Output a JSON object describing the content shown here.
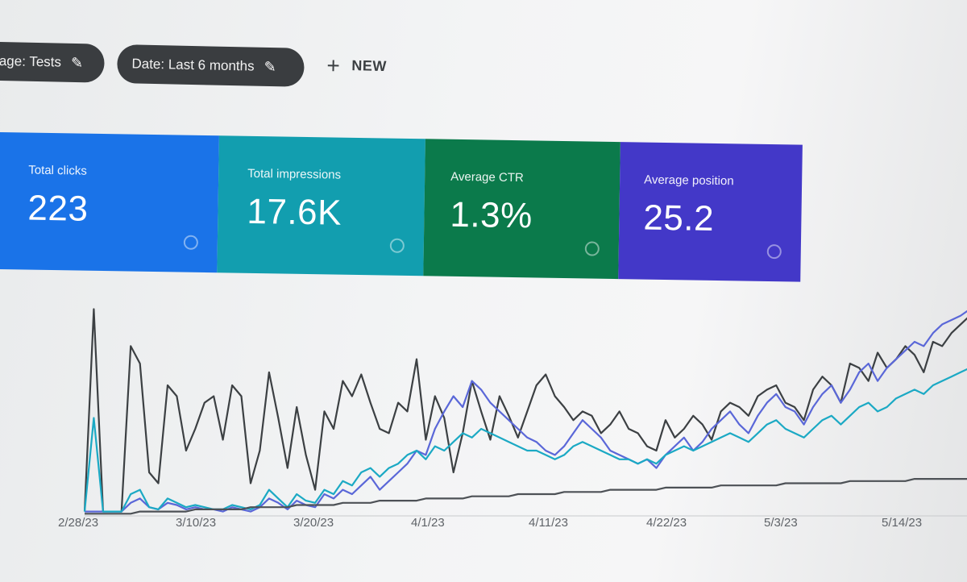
{
  "toolbar": {
    "page_filter_label": "Page: Tests",
    "date_filter_label": "Date: Last 6 months",
    "pencil_glyph": "✎",
    "new_plus": "+",
    "new_label": "NEW"
  },
  "cards": [
    {
      "label": "Total clicks",
      "value": "223",
      "color": "#1a73e8"
    },
    {
      "label": "Total impressions",
      "value": "17.6K",
      "color": "#129eaf"
    },
    {
      "label": "Average CTR",
      "value": "1.3%",
      "color": "#0b7a4b"
    },
    {
      "label": "Average position",
      "value": "25.2",
      "color": "#4338c8"
    }
  ],
  "chart_data": {
    "type": "line",
    "x_tick_labels": [
      "2/28/23",
      "3/10/23",
      "3/20/23",
      "4/1/23",
      "4/11/23",
      "4/22/23",
      "5/3/23",
      "5/14/23"
    ],
    "series": [
      {
        "color": "#3c4043",
        "values": [
          2,
          95,
          2,
          2,
          2,
          78,
          70,
          20,
          15,
          60,
          55,
          30,
          40,
          52,
          55,
          35,
          60,
          55,
          15,
          30,
          66,
          45,
          22,
          50,
          28,
          12,
          48,
          40,
          62,
          55,
          65,
          52,
          40,
          38,
          52,
          48,
          72,
          35,
          55,
          45,
          20,
          38,
          62,
          48,
          35,
          55,
          46,
          36,
          48,
          60,
          65,
          55,
          50,
          44,
          48,
          46,
          38,
          42,
          48,
          40,
          38,
          32,
          30,
          44,
          36,
          40,
          46,
          42,
          35,
          48,
          52,
          50,
          46,
          55,
          58,
          60,
          52,
          50,
          44,
          58,
          64,
          60,
          52,
          70,
          68,
          62,
          75,
          68,
          72,
          78,
          74,
          66,
          80,
          78,
          84,
          88,
          92,
          96
        ]
      },
      {
        "color": "#5a67d8",
        "values": [
          2,
          2,
          2,
          2,
          2,
          6,
          8,
          4,
          3,
          6,
          5,
          3,
          4,
          3,
          3,
          2,
          4,
          3,
          2,
          4,
          8,
          6,
          3,
          7,
          5,
          4,
          10,
          8,
          12,
          10,
          14,
          18,
          12,
          16,
          20,
          24,
          30,
          28,
          40,
          48,
          55,
          50,
          62,
          58,
          52,
          48,
          44,
          40,
          36,
          34,
          30,
          28,
          32,
          38,
          44,
          40,
          36,
          30,
          28,
          26,
          24,
          26,
          22,
          28,
          32,
          36,
          30,
          34,
          40,
          44,
          48,
          42,
          38,
          46,
          52,
          56,
          50,
          48,
          42,
          50,
          56,
          60,
          52,
          58,
          66,
          70,
          62,
          68,
          72,
          76,
          80,
          78,
          84,
          88,
          90,
          92,
          95,
          98
        ]
      },
      {
        "color": "#1ba9c4",
        "values": [
          2,
          45,
          2,
          2,
          2,
          10,
          12,
          4,
          3,
          8,
          6,
          4,
          5,
          4,
          3,
          3,
          5,
          4,
          3,
          5,
          12,
          8,
          4,
          10,
          7,
          6,
          12,
          10,
          16,
          14,
          20,
          22,
          18,
          22,
          24,
          28,
          30,
          26,
          32,
          30,
          34,
          38,
          36,
          40,
          38,
          36,
          34,
          32,
          30,
          30,
          28,
          26,
          28,
          32,
          34,
          32,
          30,
          28,
          26,
          26,
          24,
          26,
          24,
          28,
          30,
          32,
          30,
          32,
          34,
          36,
          38,
          36,
          34,
          38,
          42,
          44,
          40,
          38,
          36,
          40,
          44,
          46,
          42,
          46,
          50,
          52,
          48,
          50,
          54,
          56,
          58,
          56,
          60,
          62,
          64,
          66,
          68,
          70
        ]
      },
      {
        "color": "#4d5156",
        "values": [
          1,
          1,
          1,
          1,
          1,
          1,
          2,
          2,
          2,
          2,
          2,
          2,
          3,
          3,
          3,
          3,
          3,
          3,
          4,
          4,
          4,
          4,
          4,
          5,
          5,
          5,
          5,
          5,
          6,
          6,
          6,
          6,
          7,
          7,
          7,
          7,
          7,
          8,
          8,
          8,
          8,
          8,
          9,
          9,
          9,
          9,
          9,
          10,
          10,
          10,
          10,
          10,
          11,
          11,
          11,
          11,
          11,
          12,
          12,
          12,
          12,
          12,
          12,
          13,
          13,
          13,
          13,
          13,
          13,
          14,
          14,
          14,
          14,
          14,
          14,
          14,
          15,
          15,
          15,
          15,
          15,
          15,
          15,
          16,
          16,
          16,
          16,
          16,
          16,
          16,
          17,
          17,
          17,
          17,
          17,
          17,
          17,
          18
        ]
      }
    ],
    "ylim": [
      0,
      100
    ],
    "grid": false,
    "legend": "none"
  }
}
